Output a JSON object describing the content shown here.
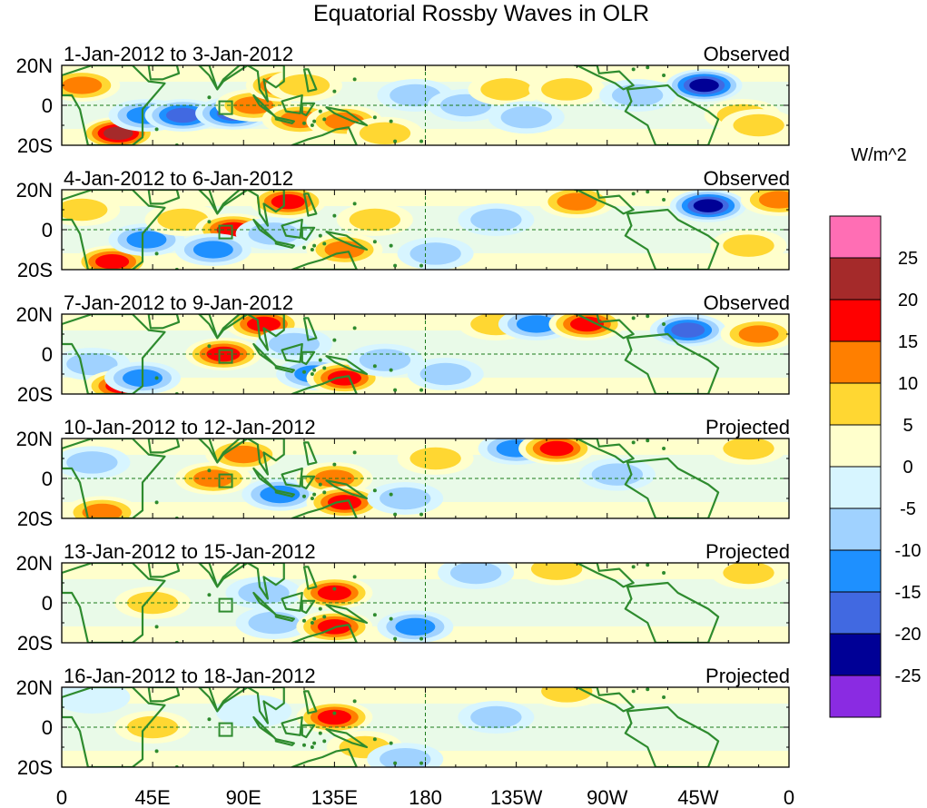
{
  "title": "Equatorial Rossby Waves in OLR",
  "colorbar": {
    "units": "W/m^2",
    "levels": [
      "25",
      "20",
      "15",
      "10",
      "5",
      "0",
      "-5",
      "-10",
      "-15",
      "-20",
      "-25"
    ],
    "colors": [
      "#ff6eb4",
      "#a52a2a",
      "#ff0000",
      "#ff7f00",
      "#ffd732",
      "#ffffcc",
      "#d7f5ff",
      "#a0d2ff",
      "#1e90ff",
      "#4169e1",
      "#000096",
      "#8a2be2"
    ]
  },
  "lat_labels": [
    "20N",
    "0",
    "20S"
  ],
  "lon_labels": [
    "0",
    "45E",
    "90E",
    "135E",
    "180",
    "135W",
    "90W",
    "45W",
    "0"
  ],
  "land_color": "#2e8b2e",
  "panels": [
    {
      "period": "1-Jan-2012 to 3-Jan-2012",
      "type": "Observed"
    },
    {
      "period": "4-Jan-2012 to 6-Jan-2012",
      "type": "Observed"
    },
    {
      "period": "7-Jan-2012 to 9-Jan-2012",
      "type": "Observed"
    },
    {
      "period": "10-Jan-2012 to 12-Jan-2012",
      "type": "Projected"
    },
    {
      "period": "13-Jan-2012 to 15-Jan-2012",
      "type": "Projected"
    },
    {
      "period": "16-Jan-2012 to 18-Jan-2012",
      "type": "Projected"
    }
  ],
  "anomalies": [
    [
      {
        "lon": 10,
        "lat": 10,
        "v": 12
      },
      {
        "lon": 28,
        "lat": -14,
        "v": 22
      },
      {
        "lon": 42,
        "lat": -5,
        "v": -12
      },
      {
        "lon": 60,
        "lat": -5,
        "v": -18
      },
      {
        "lon": 85,
        "lat": -4,
        "v": -20
      },
      {
        "lon": 95,
        "lat": 0,
        "v": 15
      },
      {
        "lon": 110,
        "lat": 10,
        "v": 16
      },
      {
        "lon": 120,
        "lat": 10,
        "v": 10
      },
      {
        "lon": 118,
        "lat": -7,
        "v": 15
      },
      {
        "lon": 140,
        "lat": -8,
        "v": 12
      },
      {
        "lon": 160,
        "lat": -14,
        "v": 10
      },
      {
        "lon": 175,
        "lat": 5,
        "v": -8
      },
      {
        "lon": 200,
        "lat": 0,
        "v": -10
      },
      {
        "lon": 220,
        "lat": 8,
        "v": 8
      },
      {
        "lon": 250,
        "lat": 8,
        "v": 8
      },
      {
        "lon": 230,
        "lat": -6,
        "v": -6
      },
      {
        "lon": 285,
        "lat": 5,
        "v": -8
      },
      {
        "lon": 318,
        "lat": 10,
        "v": -22
      },
      {
        "lon": 337,
        "lat": -5,
        "v": 10
      },
      {
        "lon": 345,
        "lat": -10,
        "v": 8
      }
    ],
    [
      {
        "lon": 10,
        "lat": 10,
        "v": 10
      },
      {
        "lon": 25,
        "lat": -16,
        "v": 18
      },
      {
        "lon": 42,
        "lat": -5,
        "v": -12
      },
      {
        "lon": 60,
        "lat": 5,
        "v": 8
      },
      {
        "lon": 85,
        "lat": 0,
        "v": 18
      },
      {
        "lon": 75,
        "lat": -10,
        "v": -12
      },
      {
        "lon": 112,
        "lat": 14,
        "v": 16
      },
      {
        "lon": 105,
        "lat": -2,
        "v": -8
      },
      {
        "lon": 140,
        "lat": -10,
        "v": 15
      },
      {
        "lon": 155,
        "lat": 5,
        "v": 8
      },
      {
        "lon": 185,
        "lat": -12,
        "v": -8
      },
      {
        "lon": 215,
        "lat": 5,
        "v": -8
      },
      {
        "lon": 255,
        "lat": 14,
        "v": 12
      },
      {
        "lon": 320,
        "lat": 12,
        "v": -22
      },
      {
        "lon": 340,
        "lat": -8,
        "v": 8
      },
      {
        "lon": 355,
        "lat": 15,
        "v": 12
      }
    ],
    [
      {
        "lon": 15,
        "lat": -5,
        "v": -8
      },
      {
        "lon": 30,
        "lat": -16,
        "v": 18
      },
      {
        "lon": 40,
        "lat": -12,
        "v": -12
      },
      {
        "lon": 80,
        "lat": 0,
        "v": 16
      },
      {
        "lon": 100,
        "lat": 15,
        "v": 18
      },
      {
        "lon": 115,
        "lat": 5,
        "v": -10
      },
      {
        "lon": 125,
        "lat": -10,
        "v": -12
      },
      {
        "lon": 140,
        "lat": -12,
        "v": 18
      },
      {
        "lon": 160,
        "lat": -3,
        "v": -6
      },
      {
        "lon": 190,
        "lat": -10,
        "v": -10
      },
      {
        "lon": 215,
        "lat": 15,
        "v": 10
      },
      {
        "lon": 235,
        "lat": 15,
        "v": -14
      },
      {
        "lon": 260,
        "lat": 15,
        "v": 18
      },
      {
        "lon": 310,
        "lat": 12,
        "v": -18
      },
      {
        "lon": 345,
        "lat": 10,
        "v": 12
      }
    ],
    [
      {
        "lon": 20,
        "lat": -17,
        "v": 12
      },
      {
        "lon": 15,
        "lat": 8,
        "v": -6
      },
      {
        "lon": 75,
        "lat": 0,
        "v": 12
      },
      {
        "lon": 90,
        "lat": 12,
        "v": 14
      },
      {
        "lon": 108,
        "lat": -8,
        "v": -12
      },
      {
        "lon": 135,
        "lat": 0,
        "v": 12
      },
      {
        "lon": 140,
        "lat": -12,
        "v": 20
      },
      {
        "lon": 170,
        "lat": -10,
        "v": -8
      },
      {
        "lon": 185,
        "lat": 10,
        "v": 8
      },
      {
        "lon": 225,
        "lat": 15,
        "v": -12
      },
      {
        "lon": 245,
        "lat": 15,
        "v": 18
      },
      {
        "lon": 275,
        "lat": 2,
        "v": -6
      },
      {
        "lon": 340,
        "lat": 15,
        "v": 10
      }
    ],
    [
      {
        "lon": 45,
        "lat": 0,
        "v": 8
      },
      {
        "lon": 100,
        "lat": 5,
        "v": -6
      },
      {
        "lon": 105,
        "lat": -10,
        "v": -8
      },
      {
        "lon": 135,
        "lat": 5,
        "v": 18
      },
      {
        "lon": 135,
        "lat": -12,
        "v": 16
      },
      {
        "lon": 175,
        "lat": -12,
        "v": -12
      },
      {
        "lon": 205,
        "lat": 15,
        "v": -6
      },
      {
        "lon": 245,
        "lat": 17,
        "v": 10
      },
      {
        "lon": 340,
        "lat": 15,
        "v": 6
      }
    ],
    [
      {
        "lon": 15,
        "lat": 15,
        "v": -5
      },
      {
        "lon": 45,
        "lat": 0,
        "v": 6
      },
      {
        "lon": 95,
        "lat": 8,
        "v": -5
      },
      {
        "lon": 135,
        "lat": 5,
        "v": 16
      },
      {
        "lon": 150,
        "lat": -10,
        "v": 6
      },
      {
        "lon": 170,
        "lat": -16,
        "v": -8
      },
      {
        "lon": 215,
        "lat": 5,
        "v": -6
      },
      {
        "lon": 250,
        "lat": 18,
        "v": 6
      }
    ]
  ]
}
